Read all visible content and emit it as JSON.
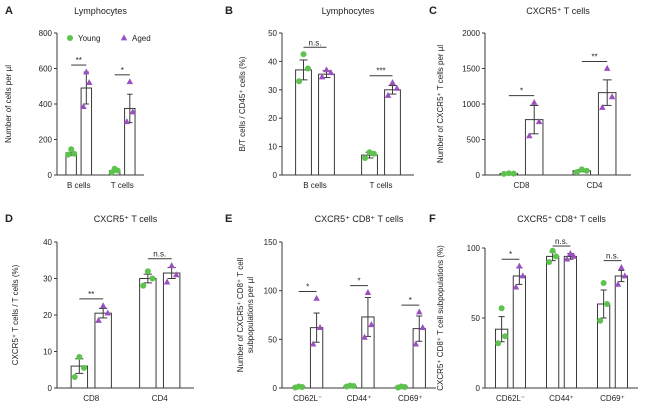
{
  "colors": {
    "young": "#5ec24e",
    "aged": "#9b4fc0",
    "bar_edge": "#3a3a3a",
    "text": "#222222"
  },
  "legend": {
    "young_label": "Young",
    "aged_label": "Aged",
    "placement": "top-left of panel A"
  },
  "chart_data": [
    {
      "panel": "A",
      "type": "bar",
      "title": "Lymphocytes",
      "ylabel": "Number of cells per µl",
      "ylim": [
        0,
        800
      ],
      "yticks": [
        0,
        200,
        400,
        600,
        800
      ],
      "categories": [
        "B cells",
        "T cells"
      ],
      "series": [
        {
          "name": "Young",
          "values": [
            125,
            25
          ],
          "errors": [
            15,
            8
          ],
          "points": [
            [
              115,
              120,
              145
            ],
            [
              15,
              25,
              35
            ]
          ]
        },
        {
          "name": "Aged",
          "values": [
            490,
            375
          ],
          "errors": [
            90,
            80
          ],
          "points": [
            [
              385,
              520,
              580
            ],
            [
              300,
              355,
              525
            ]
          ]
        }
      ],
      "brackets": [
        {
          "category": 0,
          "label": "**"
        },
        {
          "category": 1,
          "label": "*"
        }
      ]
    },
    {
      "panel": "B",
      "type": "bar",
      "title": "Lymphocytes",
      "ylabel": "B/T cells / CD45⁺ cells (%)",
      "ylim": [
        0,
        50
      ],
      "yticks": [
        0,
        10,
        20,
        30,
        40,
        50
      ],
      "categories": [
        "B cells",
        "T cells"
      ],
      "series": [
        {
          "name": "Young",
          "values": [
            37,
            7
          ],
          "errors": [
            3.5,
            1
          ],
          "points": [
            [
              33,
              37.5,
              42.5
            ],
            [
              6,
              7.5,
              8
            ]
          ]
        },
        {
          "name": "Aged",
          "values": [
            35.5,
            30
          ],
          "errors": [
            1.2,
            1.5
          ],
          "points": [
            [
              34.5,
              36,
              37
            ],
            [
              28,
              30.5,
              32.5
            ]
          ]
        }
      ],
      "brackets": [
        {
          "category": 0,
          "label": "n.s."
        },
        {
          "category": 1,
          "label": "***"
        }
      ]
    },
    {
      "panel": "C",
      "type": "bar",
      "title": "CXCR5⁺ T cells",
      "ylabel": "Number of CXCR5⁺ T cells per µl",
      "ylim": [
        0,
        2000
      ],
      "yticks": [
        0,
        500,
        1000,
        1500,
        2000
      ],
      "categories": [
        "CD8",
        "CD4"
      ],
      "series": [
        {
          "name": "Young",
          "values": [
            20,
            60
          ],
          "errors": [
            5,
            15
          ],
          "points": [
            [
              15,
              20,
              25
            ],
            [
              40,
              60,
              80
            ]
          ]
        },
        {
          "name": "Aged",
          "values": [
            780,
            1160
          ],
          "errors": [
            200,
            180
          ],
          "points": [
            [
              550,
              750,
              1020
            ],
            [
              950,
              1100,
              1500
            ]
          ]
        }
      ],
      "brackets": [
        {
          "category": 0,
          "label": "*"
        },
        {
          "category": 1,
          "label": "**"
        }
      ]
    },
    {
      "panel": "D",
      "type": "bar",
      "title": "CXCR5⁺ T cells",
      "ylabel": "CXCR5⁺ T cells / T cells (%)",
      "ylim": [
        0,
        40
      ],
      "yticks": [
        0,
        10,
        20,
        30,
        40
      ],
      "categories": [
        "CD8",
        "CD4"
      ],
      "series": [
        {
          "name": "Young",
          "values": [
            6,
            30
          ],
          "errors": [
            2,
            1.2
          ],
          "points": [
            [
              3,
              5.5,
              8.5
            ],
            [
              28,
              30,
              32
            ]
          ]
        },
        {
          "name": "Aged",
          "values": [
            20.5,
            31.5
          ],
          "errors": [
            1.3,
            1.5
          ],
          "points": [
            [
              18.5,
              20.5,
              22.5
            ],
            [
              29,
              31,
              33.5
            ]
          ]
        }
      ],
      "brackets": [
        {
          "category": 0,
          "label": "**"
        },
        {
          "category": 1,
          "label": "n.s."
        }
      ]
    },
    {
      "panel": "E",
      "type": "bar",
      "title": "CXCR5⁺ CD8⁺ T cells",
      "ylabel": "Number of CXCR5⁺ CD8⁺ T cell subpopulations per µl",
      "ylim": [
        0,
        150
      ],
      "yticks": [
        0,
        50,
        100,
        150
      ],
      "categories": [
        "CD62L⁻",
        "CD44⁺",
        "CD69⁺"
      ],
      "series": [
        {
          "name": "Young",
          "values": [
            1,
            2,
            1
          ],
          "errors": [
            0.5,
            0.5,
            0.5
          ],
          "points": [
            [
              0.5,
              1,
              1.5
            ],
            [
              1.5,
              2,
              2.5
            ],
            [
              0.5,
              1,
              1.5
            ]
          ]
        },
        {
          "name": "Aged",
          "values": [
            62,
            73,
            61
          ],
          "errors": [
            15,
            20,
            13
          ],
          "points": [
            [
              45,
              62,
              92
            ],
            [
              52,
              65,
              98
            ],
            [
              45,
              62,
              78
            ]
          ]
        }
      ],
      "brackets": [
        {
          "category": 0,
          "label": "*"
        },
        {
          "category": 1,
          "label": "*"
        },
        {
          "category": 2,
          "label": "*"
        }
      ]
    },
    {
      "panel": "F",
      "type": "bar",
      "title": "CXCR5⁺ CD8⁺ T cells",
      "ylabel": "CXCR5⁺ CD8⁺ T cell subpopulations (%)",
      "ylim": [
        0,
        100
      ],
      "yticks": [
        0,
        50,
        100
      ],
      "categories": [
        "CD62L⁻",
        "CD44⁺",
        "CD69⁺"
      ],
      "series": [
        {
          "name": "Young",
          "values": [
            42,
            94,
            60
          ],
          "errors": [
            9,
            3,
            10
          ],
          "points": [
            [
              32,
              37,
              57
            ],
            [
              90,
              94,
              98
            ],
            [
              48,
              60,
              75
            ]
          ]
        },
        {
          "name": "Aged",
          "values": [
            80,
            94,
            80
          ],
          "errors": [
            6,
            2,
            4
          ],
          "points": [
            [
              72,
              80,
              87
            ],
            [
              92,
              94,
              96
            ],
            [
              74,
              80,
              86
            ]
          ]
        }
      ],
      "brackets": [
        {
          "category": 0,
          "label": "*"
        },
        {
          "category": 1,
          "label": "n.s."
        },
        {
          "category": 2,
          "label": "n.s."
        }
      ]
    }
  ]
}
